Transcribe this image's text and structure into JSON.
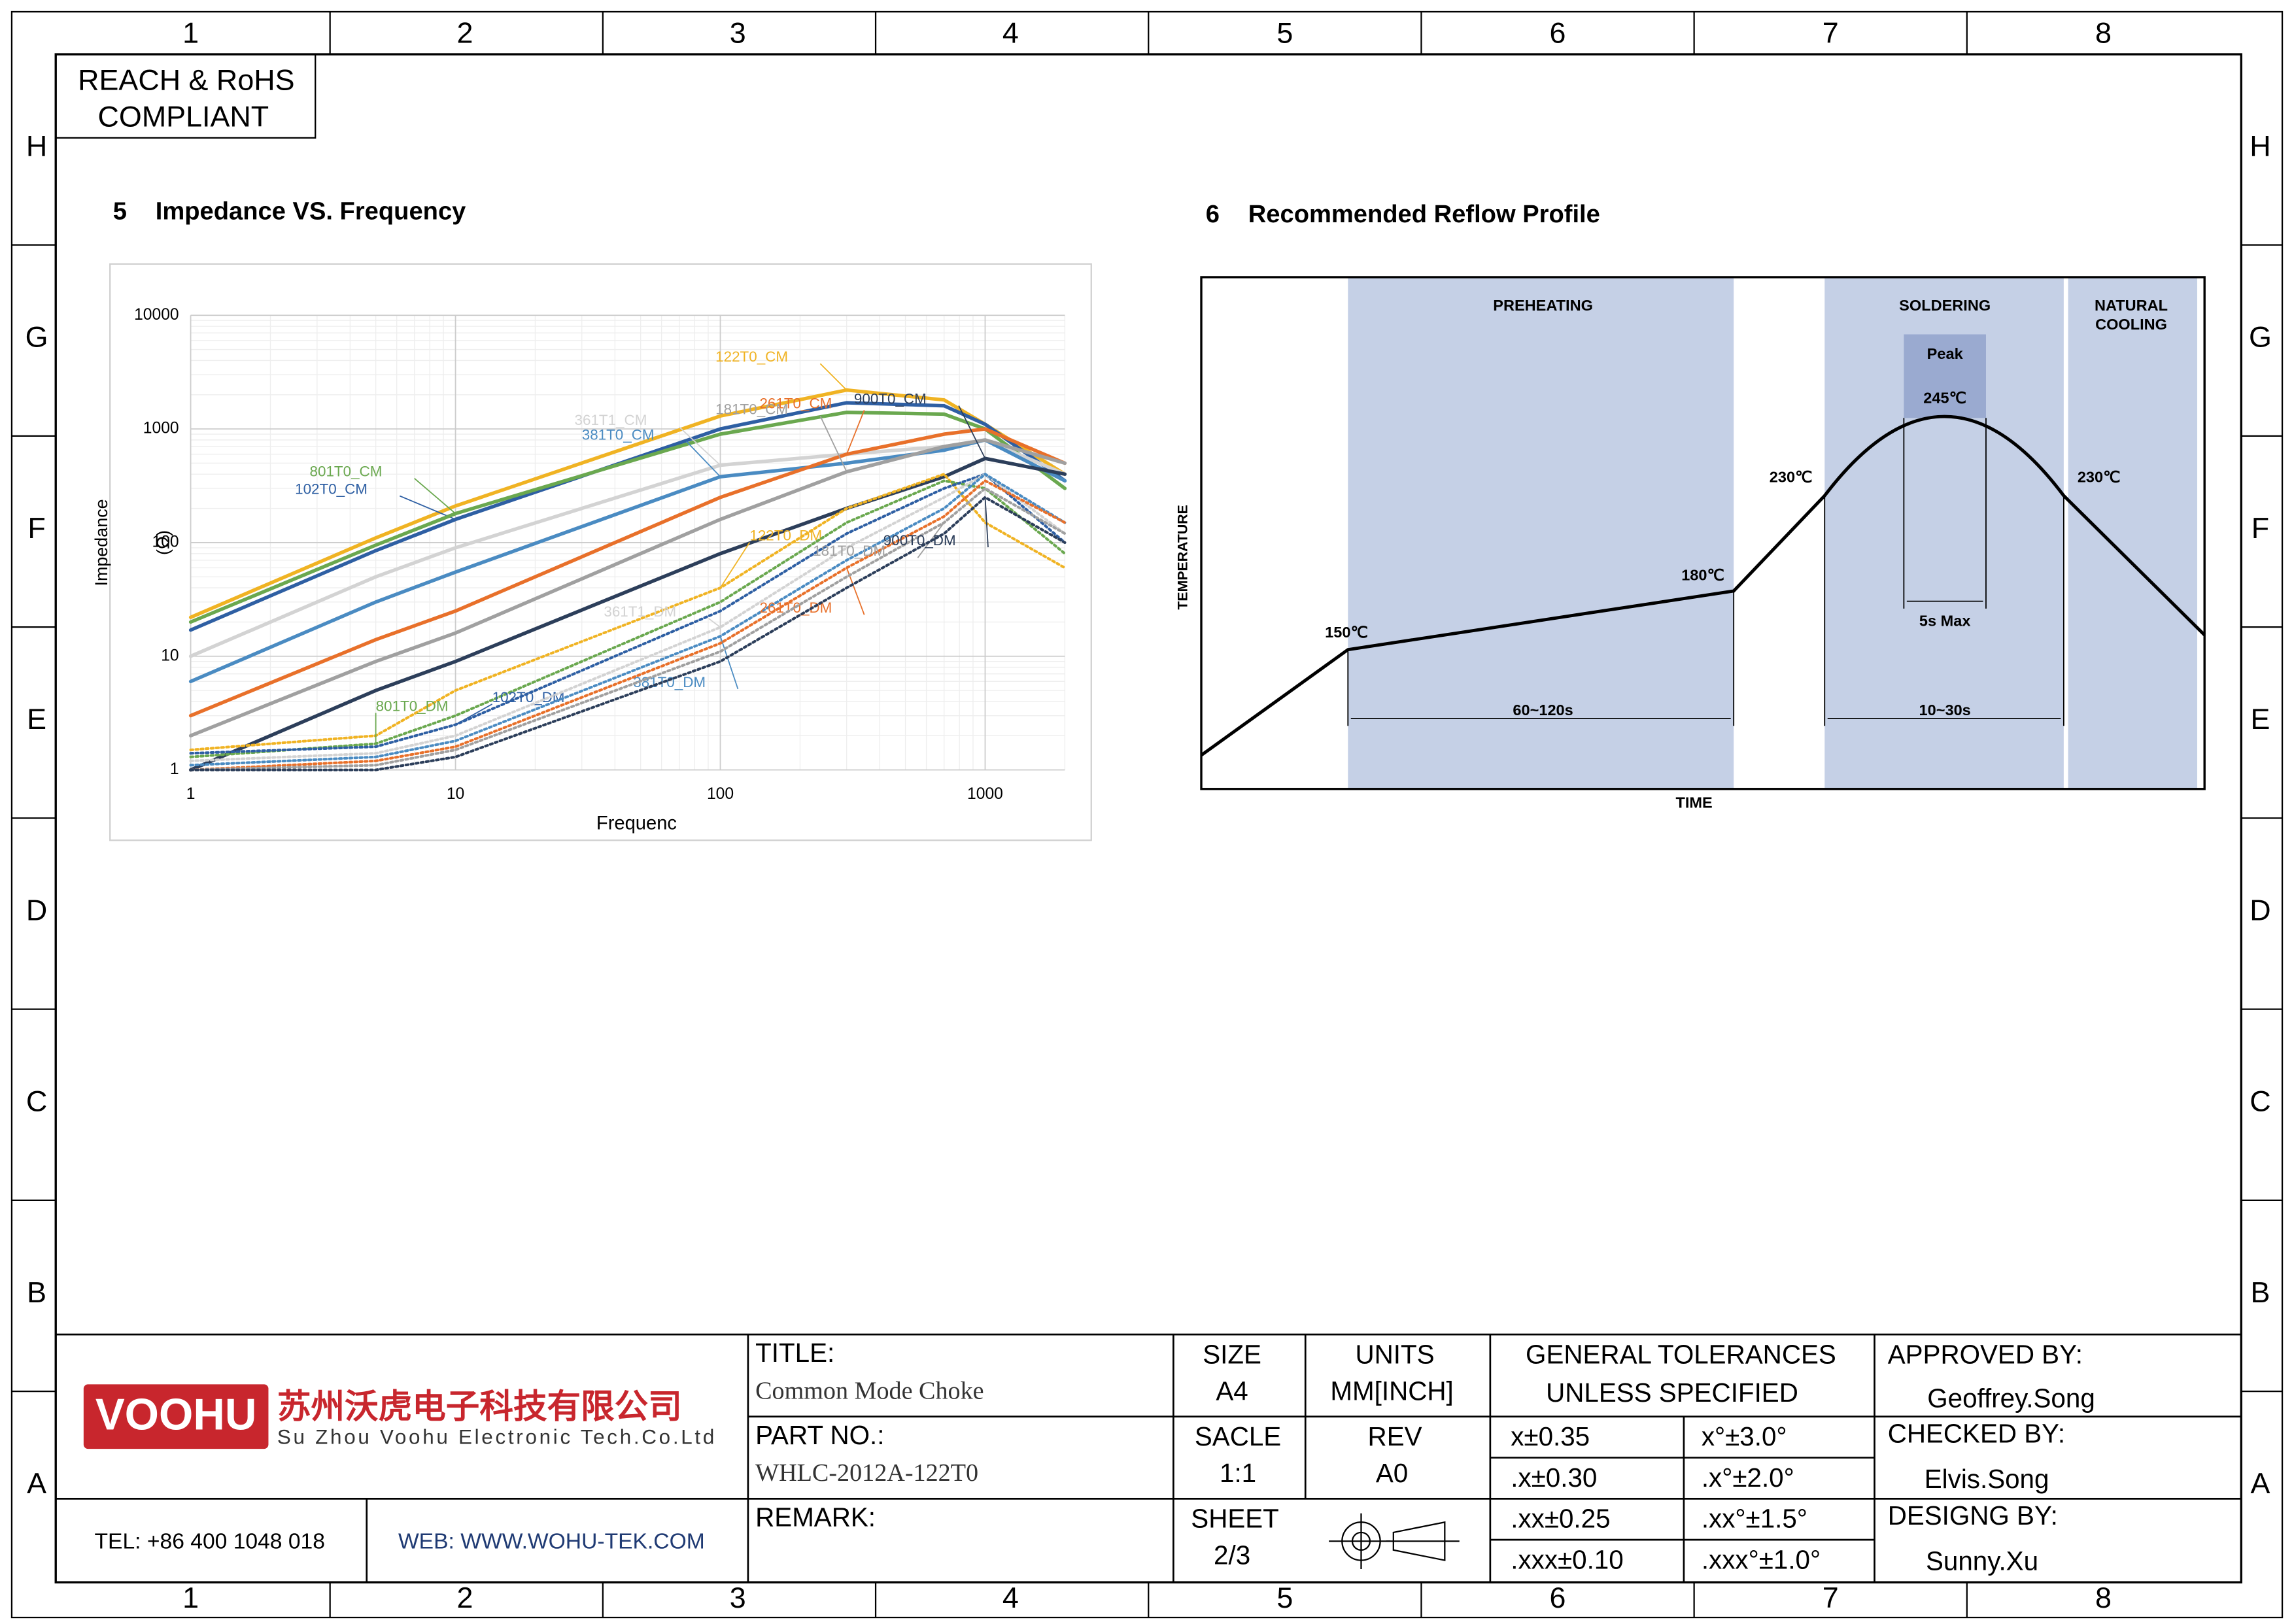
{
  "grid": {
    "columns": [
      "1",
      "2",
      "3",
      "4",
      "5",
      "6",
      "7",
      "8"
    ],
    "rows": [
      "H",
      "G",
      "F",
      "E",
      "D",
      "C",
      "B",
      "A"
    ]
  },
  "compliance": [
    "REACH & RoHS",
    "COMPLIANT"
  ],
  "section_5": {
    "number": "5",
    "title": "Impedance VS. Frequency"
  },
  "chart_data": {
    "type": "line",
    "y_label": [
      "Impedance",
      "(Ω)"
    ],
    "x_label": "Frequenc",
    "log_x": true,
    "log_y": true,
    "grid": true,
    "xlim": [
      1,
      2000
    ],
    "xticks": [
      1,
      10,
      100,
      1000
    ],
    "ylim": [
      1,
      10000
    ],
    "yticks": [
      1,
      10,
      100,
      1000,
      10000
    ],
    "x": [
      1,
      5,
      10,
      100,
      300,
      700,
      1000,
      2000
    ],
    "series": [
      {
        "name": "122T0_CM",
        "color": "#f0b323",
        "line_style": "solid",
        "values": [
          22,
          110,
          210,
          1300,
          2200,
          1800,
          1100,
          400
        ]
      },
      {
        "name": "102T0_CM",
        "color": "#2e5fa3",
        "line_style": "solid",
        "values": [
          17,
          85,
          160,
          1000,
          1700,
          1600,
          1100,
          350
        ]
      },
      {
        "name": "801T0_CM",
        "color": "#6aa84f",
        "line_style": "solid",
        "values": [
          20,
          95,
          180,
          900,
          1400,
          1350,
          1000,
          300
        ]
      },
      {
        "name": "361T1_CM",
        "color": "#d3d3d3",
        "line_style": "solid",
        "values": [
          10,
          50,
          90,
          480,
          600,
          700,
          800,
          400
        ]
      },
      {
        "name": "381T0_CM",
        "color": "#4a8bc2",
        "line_style": "solid",
        "values": [
          6,
          30,
          55,
          380,
          500,
          650,
          800,
          350
        ]
      },
      {
        "name": "261T0_CM",
        "color": "#e8702a",
        "line_style": "solid",
        "values": [
          3,
          14,
          25,
          250,
          600,
          900,
          1000,
          500
        ]
      },
      {
        "name": "181T0_CM",
        "color": "#a0a0a0",
        "line_style": "solid",
        "values": [
          2,
          9,
          16,
          160,
          420,
          700,
          800,
          500
        ]
      },
      {
        "name": "900T0_CM",
        "color": "#2c3e5a",
        "line_style": "solid",
        "values": [
          1,
          5,
          9,
          80,
          200,
          380,
          550,
          400
        ]
      },
      {
        "name": "122T0_DM",
        "color": "#f0b323",
        "line_style": "dotted",
        "values": [
          1.5,
          2,
          5,
          40,
          200,
          400,
          150,
          60
        ]
      },
      {
        "name": "801T0_DM",
        "color": "#6aa84f",
        "line_style": "dotted",
        "values": [
          1.3,
          1.7,
          3,
          30,
          150,
          350,
          300,
          80
        ]
      },
      {
        "name": "102T0_DM",
        "color": "#2e5fa3",
        "line_style": "dotted",
        "values": [
          1.4,
          1.6,
          2.5,
          25,
          120,
          300,
          400,
          100
        ]
      },
      {
        "name": "361T1_DM",
        "color": "#d3d3d3",
        "line_style": "dotted",
        "values": [
          1.2,
          1.4,
          2,
          18,
          90,
          250,
          400,
          120
        ]
      },
      {
        "name": "381T0_DM",
        "color": "#4a8bc2",
        "line_style": "dotted",
        "values": [
          1.1,
          1.3,
          1.8,
          15,
          70,
          200,
          400,
          150
        ]
      },
      {
        "name": "261T0_DM",
        "color": "#e8702a",
        "line_style": "dotted",
        "values": [
          1,
          1.2,
          1.6,
          13,
          60,
          170,
          350,
          150
        ]
      },
      {
        "name": "181T0_DM",
        "color": "#a0a0a0",
        "line_style": "dotted",
        "values": [
          1,
          1.1,
          1.5,
          11,
          50,
          150,
          300,
          120
        ]
      },
      {
        "name": "900T0_DM",
        "color": "#2c3e5a",
        "line_style": "dotted",
        "values": [
          1,
          1,
          1.3,
          9,
          40,
          120,
          250,
          100
        ]
      }
    ]
  },
  "reflow": {
    "number": "6",
    "title": "Recommended Reflow Profile",
    "preheating": "PREHEATING",
    "soldering": "SOLDERING",
    "cooling": [
      "NATURAL",
      "COOLING"
    ],
    "peak": "Peak",
    "peak_temp": "245℃",
    "t150": "150℃",
    "t180": "180℃",
    "t230_left": "230℃",
    "t230_right": "230℃",
    "preheat_time": "60~120s",
    "solder_time": "10~30s",
    "peak_time": "5s Max",
    "y_label": "TEMPERATURE",
    "x_label": "TIME"
  },
  "title_block": {
    "logo": "VOOHU",
    "company_cn": "苏州沃虎电子科技有限公司",
    "company_en": "Su Zhou Voohu Electronic Tech.Co.Ltd",
    "tel": "TEL: +86 400 1048 018",
    "web": "WEB: WWW.WOHU-TEK.COM",
    "title_label": "TITLE:",
    "title": "Common Mode Choke",
    "part_label": "PART NO.:",
    "part": "WHLC-2012A-122T0",
    "remark_label": "REMARK:",
    "size_label": "SIZE",
    "size": "A4",
    "scale_label": "SACLE",
    "scale": "1:1",
    "sheet_label": "SHEET",
    "sheet": "2/3",
    "units_label": "UNITS",
    "units": "MM[INCH]",
    "rev_label": "REV",
    "rev": "A0",
    "tolerance_title": [
      "GENERAL TOLERANCES",
      "UNLESS SPECIFIED"
    ],
    "tolerances": [
      [
        "x±0.35",
        "x°±3.0°"
      ],
      [
        ".x±0.30",
        ".x°±2.0°"
      ],
      [
        ".xx±0.25",
        ".xx°±1.5°"
      ],
      [
        ".xxx±0.10",
        ".xxx°±1.0°"
      ]
    ],
    "approved_label": "APPROVED BY:",
    "approved": "Geoffrey.Song",
    "checked_label": "CHECKED BY:",
    "checked": "Elvis.Song",
    "designed_label": "DESIGNG BY:",
    "designed": "Sunny.Xu"
  }
}
